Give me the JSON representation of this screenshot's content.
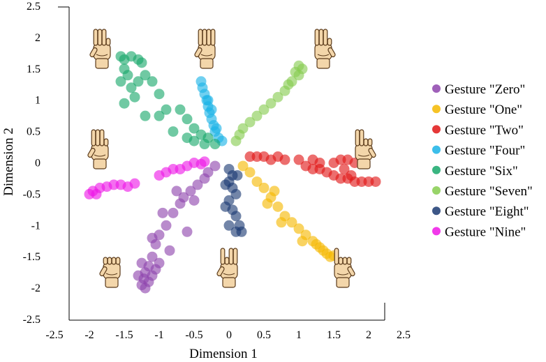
{
  "chart_data": {
    "type": "scatter",
    "title": "",
    "xlabel": "Dimension 1",
    "ylabel": "Dimension 2",
    "xlim": [
      -2.5,
      2.5
    ],
    "ylim": [
      -2.5,
      2.5
    ],
    "xticks": [
      "-2.5",
      "-2",
      "-1.5",
      "-1",
      "-0.5",
      "0",
      "0.5",
      "1",
      "1.5",
      "2",
      "2.5"
    ],
    "yticks": [
      "2.5",
      "2",
      "1.5",
      "1",
      "0.5",
      "0",
      "-0.5",
      "-1",
      "-1.5",
      "-2",
      "-2.5"
    ],
    "grid": false,
    "legend_position": "right",
    "series": [
      {
        "name": "Gesture \"Zero\"",
        "color": "#8e44ad",
        "points": [
          [
            -0.2,
            -0.05
          ],
          [
            -0.3,
            -0.15
          ],
          [
            -0.35,
            -0.25
          ],
          [
            -0.45,
            -0.35
          ],
          [
            -0.55,
            -0.45
          ],
          [
            -0.65,
            -0.55
          ],
          [
            -0.7,
            -0.65
          ],
          [
            -0.8,
            -0.8
          ],
          [
            -0.9,
            -1.0
          ],
          [
            -1.0,
            -1.15
          ],
          [
            -1.05,
            -1.3
          ],
          [
            -1.1,
            -1.5
          ],
          [
            -1.15,
            -1.65
          ],
          [
            -1.2,
            -1.75
          ],
          [
            -1.22,
            -1.85
          ],
          [
            -1.25,
            -1.95
          ],
          [
            -1.2,
            -2.0
          ],
          [
            -1.15,
            -1.9
          ],
          [
            -1.1,
            -1.8
          ],
          [
            -1.05,
            -1.7
          ],
          [
            -1.3,
            -1.8
          ],
          [
            -0.6,
            -1.1
          ],
          [
            -0.95,
            -0.8
          ],
          [
            -0.5,
            -0.6
          ],
          [
            -0.75,
            -0.45
          ],
          [
            -1.1,
            -1.2
          ],
          [
            -1.0,
            -1.6
          ],
          [
            -1.25,
            -1.6
          ],
          [
            -0.85,
            -1.4
          ]
        ]
      },
      {
        "name": "Gesture \"One\"",
        "color": "#f5b800",
        "points": [
          [
            0.2,
            -0.05
          ],
          [
            0.3,
            -0.15
          ],
          [
            0.4,
            -0.3
          ],
          [
            0.5,
            -0.4
          ],
          [
            0.6,
            -0.55
          ],
          [
            0.7,
            -0.7
          ],
          [
            0.8,
            -0.85
          ],
          [
            0.9,
            -0.95
          ],
          [
            1.0,
            -1.05
          ],
          [
            1.1,
            -1.15
          ],
          [
            1.2,
            -1.25
          ],
          [
            1.3,
            -1.35
          ],
          [
            1.4,
            -1.45
          ],
          [
            1.45,
            -1.5
          ],
          [
            1.5,
            -1.48
          ],
          [
            1.35,
            -1.4
          ],
          [
            1.25,
            -1.3
          ],
          [
            0.65,
            -0.45
          ],
          [
            0.55,
            -0.65
          ],
          [
            0.75,
            -0.95
          ],
          [
            1.05,
            -1.25
          ]
        ]
      },
      {
        "name": "Gesture \"Two\"",
        "color": "#e01515",
        "points": [
          [
            0.3,
            0.1
          ],
          [
            0.4,
            0.1
          ],
          [
            0.5,
            0.1
          ],
          [
            0.6,
            0.05
          ],
          [
            0.7,
            0.1
          ],
          [
            0.8,
            0.05
          ],
          [
            1.0,
            0.05
          ],
          [
            1.1,
            -0.05
          ],
          [
            1.2,
            -0.1
          ],
          [
            1.3,
            -0.1
          ],
          [
            1.4,
            -0.15
          ],
          [
            1.5,
            -0.2
          ],
          [
            1.6,
            -0.25
          ],
          [
            1.7,
            -0.25
          ],
          [
            1.8,
            -0.3
          ],
          [
            1.9,
            -0.3
          ],
          [
            2.0,
            -0.3
          ],
          [
            2.1,
            -0.3
          ],
          [
            1.5,
            0.0
          ],
          [
            1.6,
            0.05
          ],
          [
            1.7,
            0.05
          ],
          [
            1.8,
            0.0
          ],
          [
            1.2,
            0.05
          ],
          [
            1.3,
            0.0
          ],
          [
            1.65,
            -0.1
          ],
          [
            1.75,
            -0.2
          ]
        ]
      },
      {
        "name": "Gesture \"Four\"",
        "color": "#1ab3e6",
        "points": [
          [
            -0.4,
            1.3
          ],
          [
            -0.38,
            1.2
          ],
          [
            -0.35,
            1.1
          ],
          [
            -0.32,
            1.0
          ],
          [
            -0.3,
            0.9
          ],
          [
            -0.28,
            0.8
          ],
          [
            -0.25,
            0.7
          ],
          [
            -0.22,
            0.6
          ],
          [
            -0.2,
            0.5
          ],
          [
            -0.15,
            0.4
          ],
          [
            -0.1,
            0.35
          ],
          [
            -0.3,
            1.0
          ],
          [
            -0.25,
            0.85
          ],
          [
            -0.18,
            0.55
          ]
        ]
      },
      {
        "name": "Gesture \"Six\"",
        "color": "#18a86b",
        "points": [
          [
            -1.55,
            1.7
          ],
          [
            -1.5,
            1.65
          ],
          [
            -1.4,
            1.7
          ],
          [
            -1.3,
            1.65
          ],
          [
            -1.25,
            1.6
          ],
          [
            -1.5,
            1.5
          ],
          [
            -1.45,
            1.4
          ],
          [
            -1.55,
            1.3
          ],
          [
            -1.4,
            1.2
          ],
          [
            -1.3,
            1.3
          ],
          [
            -1.2,
            1.4
          ],
          [
            -1.35,
            1.05
          ],
          [
            -1.5,
            0.95
          ],
          [
            -1.2,
            0.75
          ],
          [
            -1.0,
            0.75
          ],
          [
            -0.9,
            0.85
          ],
          [
            -0.7,
            0.85
          ],
          [
            -0.6,
            0.7
          ],
          [
            -0.5,
            0.55
          ],
          [
            -0.4,
            0.45
          ],
          [
            -0.3,
            0.4
          ],
          [
            -0.2,
            0.3
          ],
          [
            -0.5,
            0.35
          ],
          [
            -0.8,
            0.5
          ],
          [
            -1.1,
            1.3
          ],
          [
            -1.0,
            1.1
          ],
          [
            -0.35,
            0.3
          ],
          [
            -0.6,
            0.4
          ]
        ]
      },
      {
        "name": "Gesture \"Seven\"",
        "color": "#86cc4f",
        "points": [
          [
            0.1,
            0.35
          ],
          [
            0.15,
            0.45
          ],
          [
            0.2,
            0.55
          ],
          [
            0.3,
            0.65
          ],
          [
            0.4,
            0.75
          ],
          [
            0.5,
            0.85
          ],
          [
            0.6,
            0.95
          ],
          [
            0.7,
            1.05
          ],
          [
            0.8,
            1.15
          ],
          [
            0.85,
            1.25
          ],
          [
            0.9,
            1.3
          ],
          [
            1.0,
            1.4
          ],
          [
            1.05,
            1.5
          ],
          [
            1.0,
            1.55
          ],
          [
            0.95,
            1.45
          ]
        ]
      },
      {
        "name": "Gesture \"Eight\"",
        "color": "#1b3a72",
        "points": [
          [
            0.0,
            -0.1
          ],
          [
            0.05,
            -0.2
          ],
          [
            0.0,
            -0.3
          ],
          [
            0.05,
            -0.4
          ],
          [
            0.1,
            -0.5
          ],
          [
            0.0,
            -0.6
          ],
          [
            0.05,
            -0.75
          ],
          [
            0.1,
            -0.85
          ],
          [
            0.15,
            -1.0
          ],
          [
            0.18,
            -1.1
          ],
          [
            0.1,
            -1.1
          ],
          [
            0.0,
            -1.0
          ],
          [
            -0.05,
            -0.7
          ],
          [
            0.12,
            -0.2
          ],
          [
            -0.05,
            -0.35
          ]
        ]
      },
      {
        "name": "Gesture \"Nine\"",
        "color": "#ee17e6",
        "points": [
          [
            -2.0,
            -0.5
          ],
          [
            -1.95,
            -0.45
          ],
          [
            -1.85,
            -0.4
          ],
          [
            -1.75,
            -0.38
          ],
          [
            -1.65,
            -0.35
          ],
          [
            -1.55,
            -0.35
          ],
          [
            -1.45,
            -0.38
          ],
          [
            -1.35,
            -0.33
          ],
          [
            -1.0,
            -0.2
          ],
          [
            -0.9,
            -0.15
          ],
          [
            -0.8,
            -0.1
          ],
          [
            -0.7,
            -0.1
          ],
          [
            -0.6,
            -0.05
          ],
          [
            -0.5,
            0.0
          ],
          [
            -0.4,
            -0.02
          ],
          [
            -0.35,
            0.02
          ],
          [
            -1.9,
            -0.5
          ]
        ]
      }
    ]
  }
}
